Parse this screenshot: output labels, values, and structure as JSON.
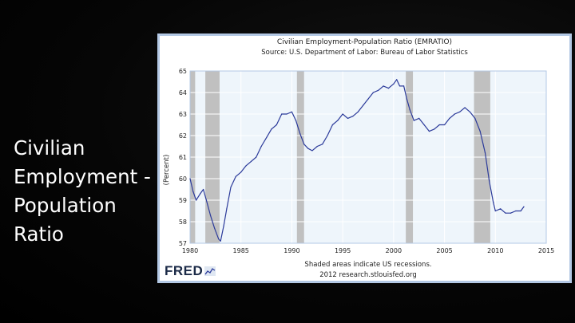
{
  "slide": {
    "title": "Civilian\nEmployment -\nPopulation\nRatio"
  },
  "chart_data": {
    "type": "line",
    "title": "Civilian Employment-Population Ratio (EMRATIO)",
    "subtitle": "Source: U.S. Department of Labor: Bureau of Labor Statistics",
    "ylabel": "(Percent)",
    "xlabel": "",
    "footnote_line1": "Shaded areas indicate US recessions.",
    "footnote_line2": "2012 research.stlouisfed.org",
    "logo": "FRED",
    "xlim": [
      1980,
      2015
    ],
    "ylim": [
      57,
      65
    ],
    "x_ticks": [
      "1980",
      "1985",
      "1990",
      "1995",
      "2000",
      "2005",
      "2010",
      "2015"
    ],
    "y_ticks": [
      "57",
      "58",
      "59",
      "60",
      "61",
      "62",
      "63",
      "64",
      "65"
    ],
    "grid": true,
    "legend": "none",
    "line_color": "#2b3a9a",
    "plot_background": "#eef5fb",
    "frame_color": "#b3c8e4",
    "recession_color": "#c0c0c0",
    "recessions": [
      [
        1980.0,
        1980.5
      ],
      [
        1981.5,
        1982.9
      ],
      [
        1990.5,
        1991.2
      ],
      [
        2001.2,
        2001.9
      ],
      [
        2007.9,
        2009.5
      ]
    ],
    "series": [
      {
        "x": [
          1980.0,
          1980.3,
          1980.6,
          1981.0,
          1981.3,
          1981.6,
          1982.0,
          1982.4,
          1982.8,
          1983.0,
          1983.3,
          1983.6,
          1984.0,
          1984.5,
          1985.0,
          1985.5,
          1986.0,
          1986.5,
          1987.0,
          1987.5,
          1988.0,
          1988.5,
          1989.0,
          1989.5,
          1990.0,
          1990.4,
          1990.8,
          1991.2,
          1991.6,
          1992.0,
          1992.5,
          1993.0,
          1993.5,
          1994.0,
          1994.5,
          1995.0,
          1995.5,
          1996.0,
          1996.5,
          1997.0,
          1997.5,
          1998.0,
          1998.5,
          1999.0,
          1999.5,
          2000.0,
          2000.3,
          2000.6,
          2001.0,
          2001.3,
          2001.6,
          2002.0,
          2002.5,
          2003.0,
          2003.5,
          2004.0,
          2004.5,
          2005.0,
          2005.5,
          2006.0,
          2006.5,
          2007.0,
          2007.5,
          2008.0,
          2008.5,
          2009.0,
          2009.4,
          2009.8,
          2010.0,
          2010.5,
          2011.0,
          2011.5,
          2012.0,
          2012.5,
          2012.8
        ],
        "values": [
          60.0,
          59.4,
          59.0,
          59.3,
          59.5,
          59.0,
          58.3,
          57.7,
          57.2,
          57.1,
          57.8,
          58.6,
          59.6,
          60.1,
          60.3,
          60.6,
          60.8,
          61.0,
          61.5,
          61.9,
          62.3,
          62.5,
          63.0,
          63.0,
          63.1,
          62.7,
          62.1,
          61.6,
          61.4,
          61.3,
          61.5,
          61.6,
          62.0,
          62.5,
          62.7,
          63.0,
          62.8,
          62.9,
          63.1,
          63.4,
          63.7,
          64.0,
          64.1,
          64.3,
          64.2,
          64.4,
          64.6,
          64.3,
          64.3,
          63.7,
          63.2,
          62.7,
          62.8,
          62.5,
          62.2,
          62.3,
          62.5,
          62.5,
          62.8,
          63.0,
          63.1,
          63.3,
          63.1,
          62.8,
          62.2,
          61.2,
          59.9,
          58.9,
          58.5,
          58.6,
          58.4,
          58.4,
          58.5,
          58.5,
          58.7
        ]
      }
    ]
  }
}
